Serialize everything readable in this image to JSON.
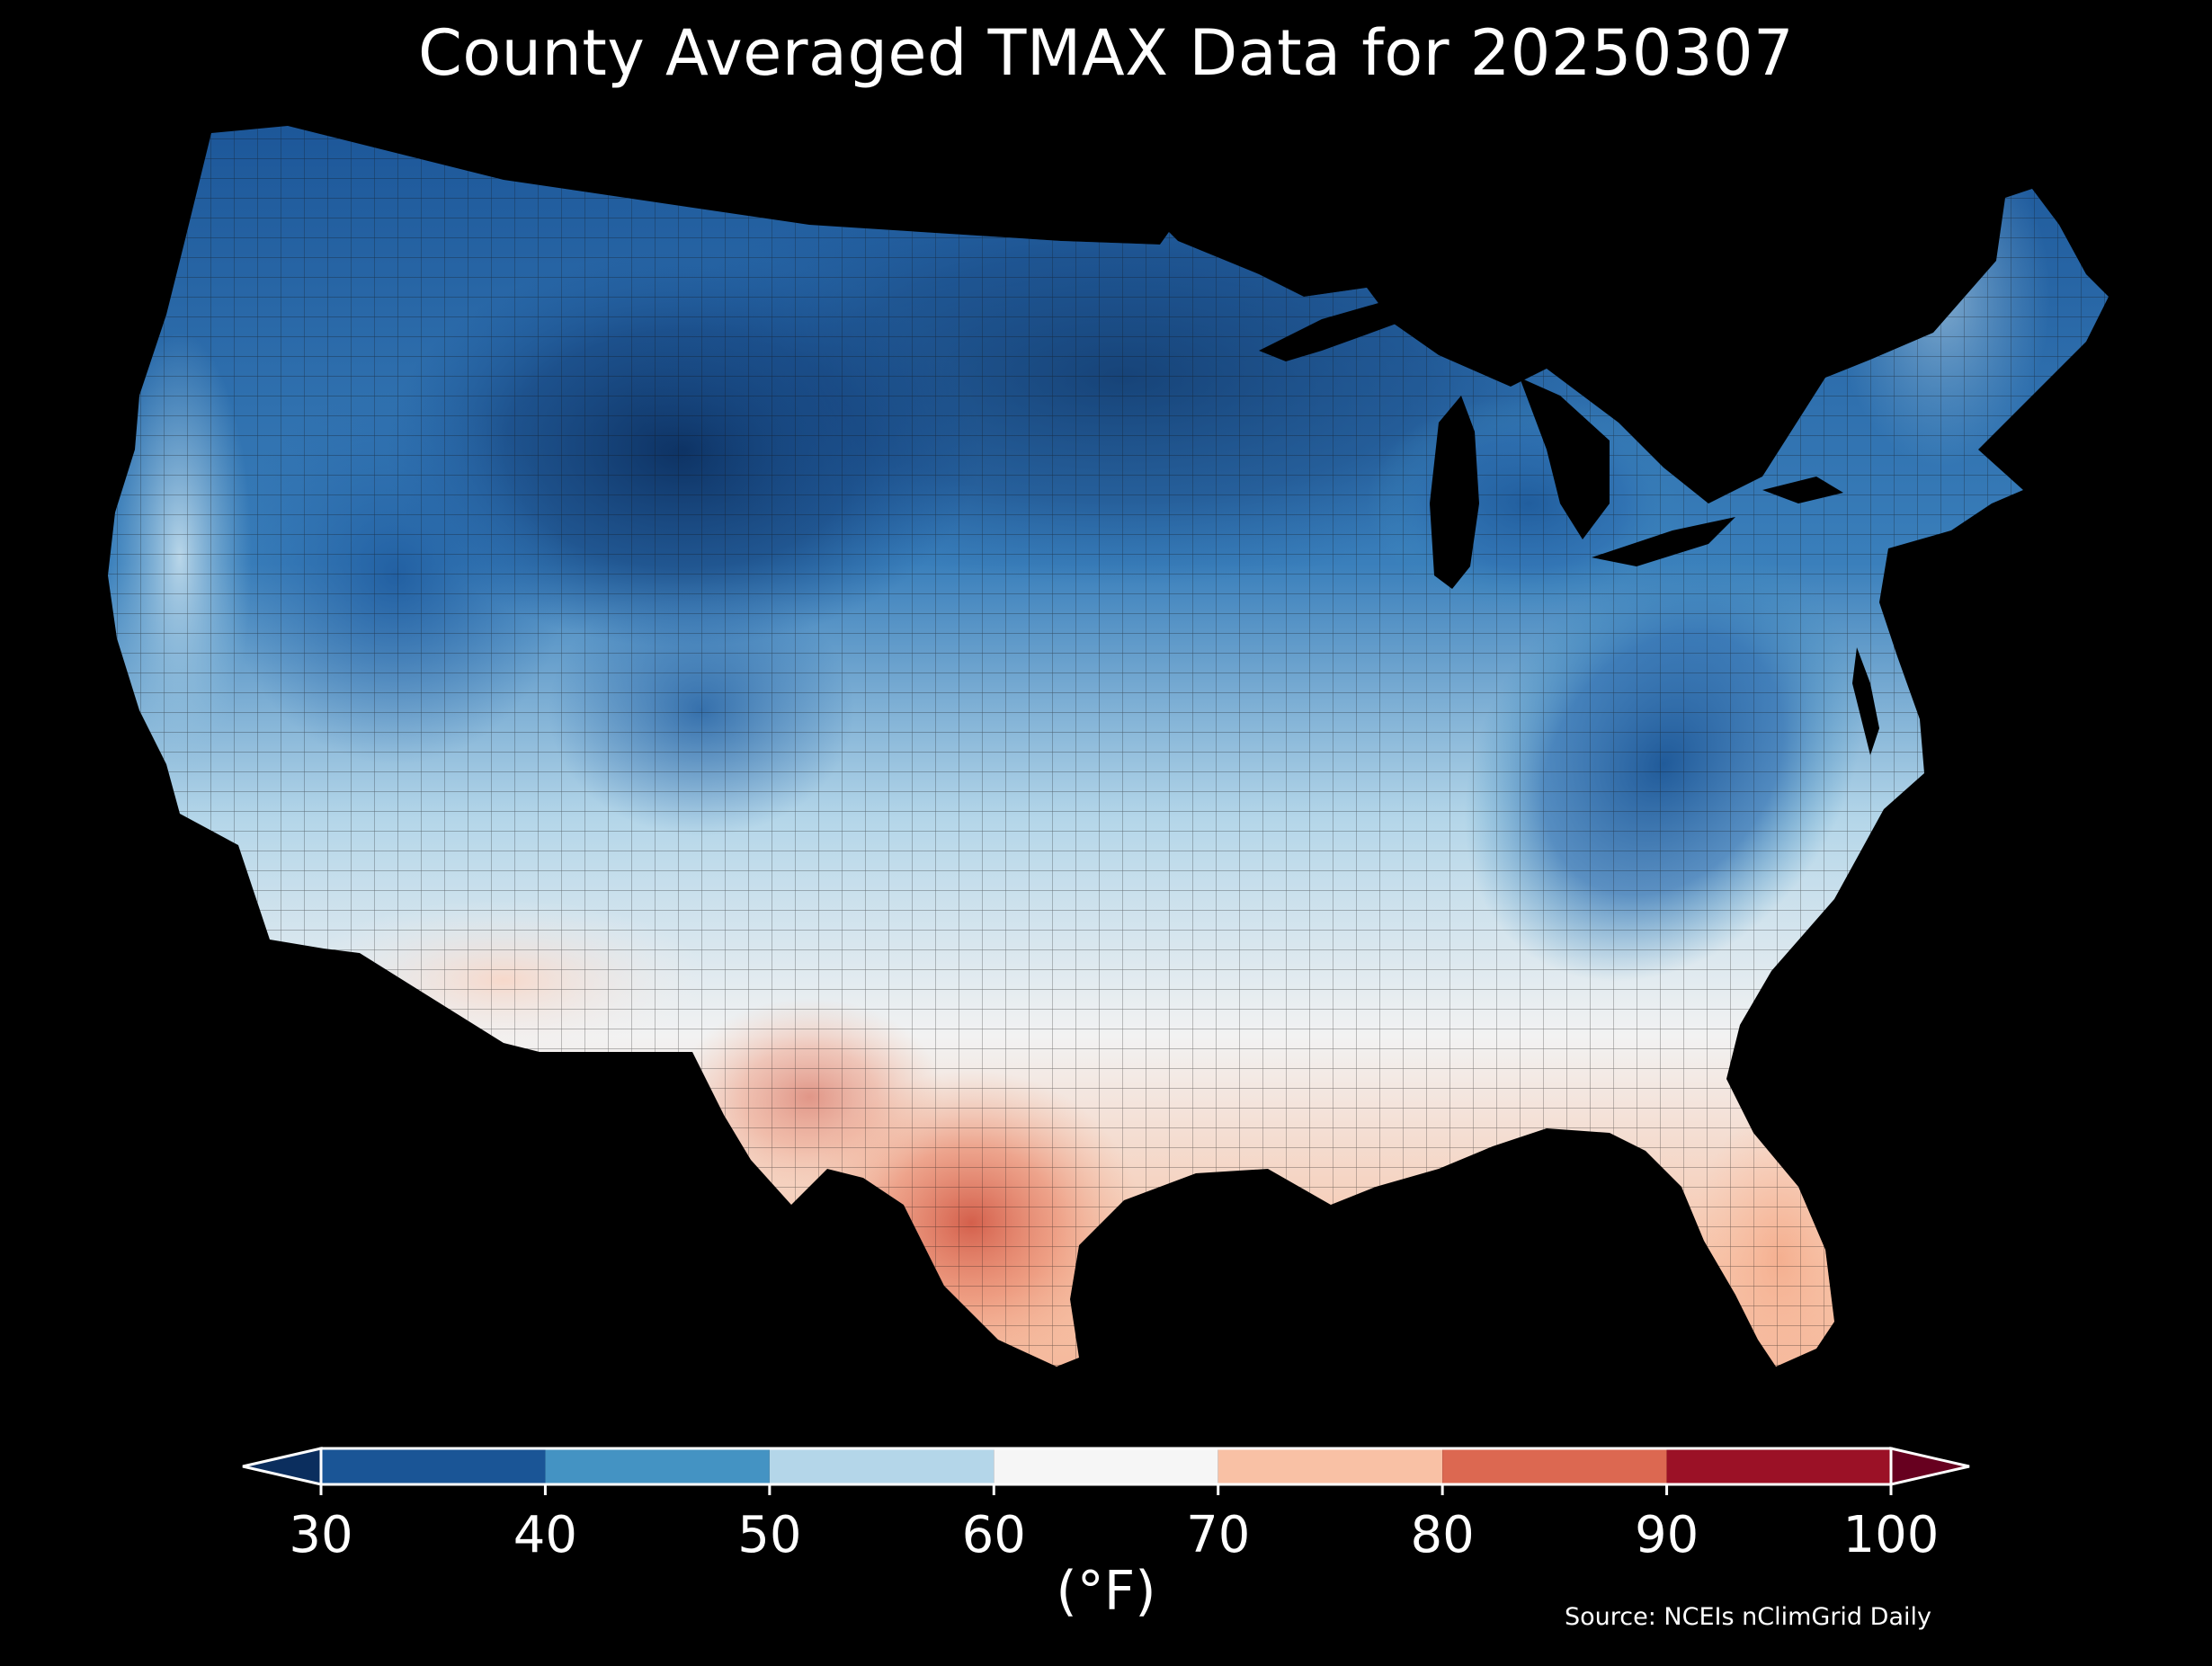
{
  "title": "County Averaged TMAX Data for 20250307",
  "colorbar": {
    "unit_label": "(°F)",
    "ticks": [
      "30",
      "40",
      "50",
      "60",
      "70",
      "80",
      "90",
      "100"
    ],
    "bins": [
      {
        "min": 30,
        "max": 40,
        "color": "#1a5596"
      },
      {
        "min": 40,
        "max": 50,
        "color": "#4493c3"
      },
      {
        "min": 50,
        "max": 60,
        "color": "#b4d6e9"
      },
      {
        "min": 60,
        "max": 70,
        "color": "#f6f6f6"
      },
      {
        "min": 70,
        "max": 80,
        "color": "#f9c1a5"
      },
      {
        "min": 80,
        "max": 90,
        "color": "#dc6851"
      },
      {
        "min": 90,
        "max": 100,
        "color": "#9b1126"
      }
    ],
    "extend_low_color": "#0b2e5e",
    "extend_high_color": "#67001f"
  },
  "source_note": "Source: NCEIs nClimGrid Daily",
  "colors": {
    "background": "#000000",
    "water": "#000000",
    "county_border": "#111111"
  }
}
